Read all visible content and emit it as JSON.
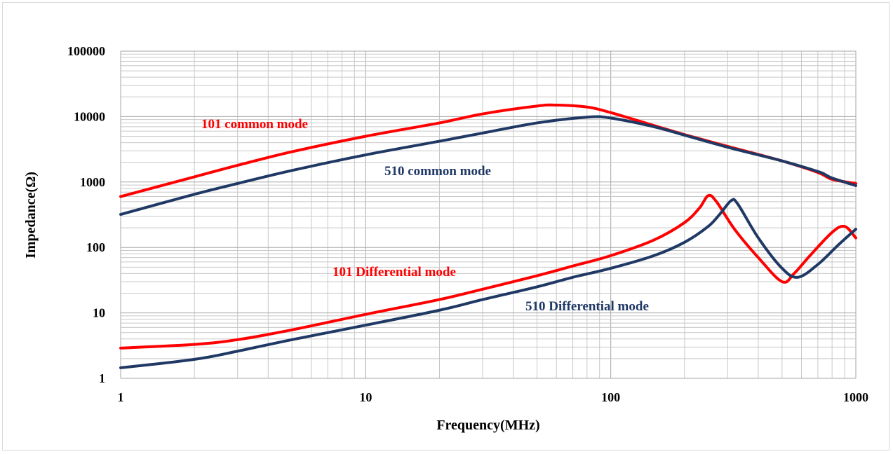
{
  "chart_data": {
    "type": "line",
    "xlabel": "Frequency(MHz)",
    "ylabel": "Impedance(Ω)",
    "x_scale": "log",
    "y_scale": "log",
    "xlim": [
      1,
      1000
    ],
    "ylim": [
      1,
      100000
    ],
    "grid": true,
    "x_ticks": [
      "1",
      "10",
      "100",
      "1000"
    ],
    "y_ticks": [
      "1",
      "10",
      "100",
      "1000",
      "10000",
      "100000"
    ],
    "series": [
      {
        "name": "101 common mode",
        "color": "#ff0000",
        "x": [
          1,
          2,
          3,
          5,
          10,
          20,
          30,
          50,
          60,
          80,
          100,
          150,
          200,
          300,
          500,
          700,
          800,
          1000
        ],
        "y": [
          600,
          1200,
          1800,
          2900,
          5000,
          8000,
          11000,
          14500,
          15000,
          14000,
          11500,
          7300,
          5300,
          3500,
          2100,
          1400,
          1100,
          950
        ]
      },
      {
        "name": "510 common mode",
        "color": "#1f3864",
        "x": [
          1,
          2,
          3,
          5,
          10,
          20,
          30,
          50,
          80,
          100,
          150,
          200,
          300,
          500,
          700,
          750,
          800,
          1000
        ],
        "y": [
          320,
          650,
          950,
          1500,
          2600,
          4200,
          5600,
          8000,
          9800,
          9500,
          7000,
          5200,
          3400,
          2100,
          1450,
          1300,
          1150,
          880
        ]
      },
      {
        "name": "101 Differential mode",
        "color": "#ff0000",
        "x": [
          1,
          2,
          3,
          5,
          10,
          20,
          30,
          50,
          70,
          100,
          150,
          200,
          230,
          250,
          270,
          320,
          400,
          500,
          560,
          650,
          800,
          900,
          1000
        ],
        "y": [
          2.9,
          3.3,
          3.9,
          5.5,
          9.5,
          16,
          23,
          37,
          52,
          75,
          130,
          240,
          400,
          620,
          500,
          190,
          70,
          30,
          40,
          75,
          170,
          210,
          140
        ]
      },
      {
        "name": "510 Differential mode",
        "color": "#1f3864",
        "x": [
          1,
          2,
          3,
          5,
          10,
          20,
          30,
          50,
          70,
          100,
          150,
          200,
          250,
          280,
          310,
          330,
          400,
          500,
          580,
          700,
          850,
          1000
        ],
        "y": [
          1.45,
          1.95,
          2.6,
          3.9,
          6.5,
          11,
          16,
          25,
          35,
          48,
          75,
          120,
          210,
          330,
          520,
          460,
          140,
          48,
          35,
          55,
          110,
          190
        ]
      }
    ]
  }
}
